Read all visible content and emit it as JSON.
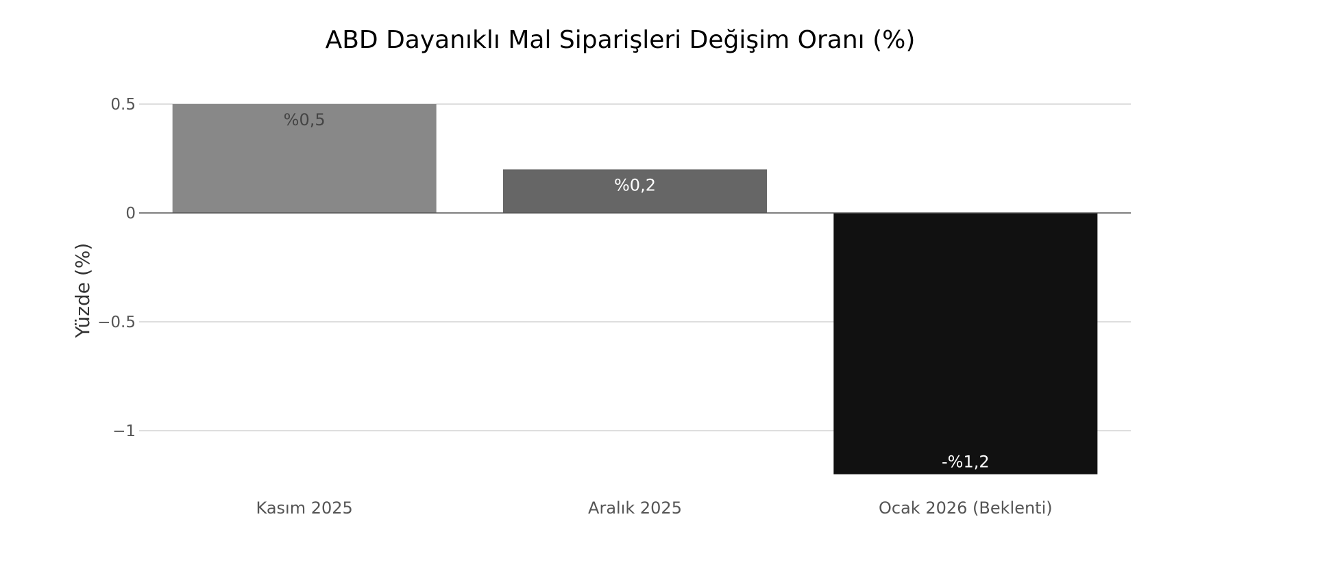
{
  "chart_data": {
    "type": "bar",
    "title": "ABD Dayanıklı Mal Siparişleri Değişim Oranı (%)",
    "xlabel": "",
    "ylabel": "Yüzde (%)",
    "categories": [
      "Kasım 2025",
      "Aralık 2025",
      "Ocak 2026 (Beklenti)"
    ],
    "values": [
      0.5,
      0.2,
      -1.2
    ],
    "data_labels": [
      "%0,5",
      "%0,2",
      "-%1,2"
    ],
    "bar_colors": [
      "#888888",
      "#666666",
      "#111111"
    ],
    "label_colors": [
      "#444444",
      "#ffffff",
      "#ffffff"
    ],
    "y_ticks": [
      0.5,
      0,
      -0.5,
      -1
    ],
    "y_tick_labels": [
      "0.5",
      "0",
      "−0.5",
      "−1"
    ],
    "ylim": [
      -1.2,
      0.5
    ],
    "grid": true,
    "legend": "none"
  }
}
